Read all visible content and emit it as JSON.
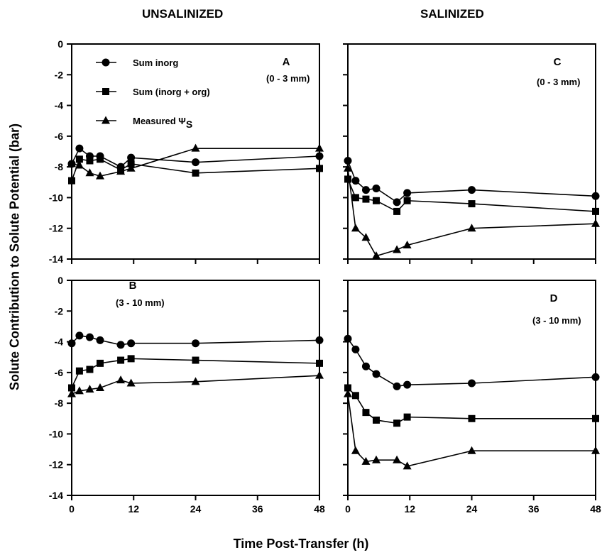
{
  "figure": {
    "header_left": "UNSALINIZED",
    "header_right": "SALINIZED",
    "xlabel": "Time Post-Transfer (h)",
    "ylabel": "Solute Contribution to Solute Potential  (bar)"
  },
  "legend": [
    {
      "label": "Sum inorg",
      "marker": "circle"
    },
    {
      "label": "Sum (inorg + org)",
      "marker": "square"
    },
    {
      "label": "Measured Ψ",
      "subscript": "S",
      "marker": "triangle"
    }
  ],
  "chart_data": [
    {
      "type": "line",
      "panel": "A",
      "annotation": "(0 - 3 mm)",
      "xlim": [
        0,
        48
      ],
      "ylim": [
        -14,
        0
      ],
      "xticks": [
        0,
        12,
        24,
        36,
        48
      ],
      "yticks": [
        0,
        -2,
        -4,
        -6,
        -8,
        -10,
        -12,
        -14
      ],
      "series": [
        {
          "name": "Sum inorg",
          "marker": "circle",
          "x": [
            0,
            1.5,
            3.5,
            5.5,
            9.5,
            11.5,
            24,
            48
          ],
          "y": [
            -7.8,
            -6.8,
            -7.3,
            -7.3,
            -8.0,
            -7.4,
            -7.7,
            -7.3
          ]
        },
        {
          "name": "Sum (inorg + org)",
          "marker": "square",
          "x": [
            0,
            1.5,
            3.5,
            5.5,
            9.5,
            11.5,
            24,
            48
          ],
          "y": [
            -8.9,
            -7.5,
            -7.6,
            -7.5,
            -8.2,
            -7.8,
            -8.4,
            -8.1
          ]
        },
        {
          "name": "Measured Ψ",
          "marker": "triangle",
          "x": [
            0,
            1.5,
            3.5,
            5.5,
            9.5,
            11.5,
            24,
            48
          ],
          "y": [
            -7.8,
            -7.9,
            -8.4,
            -8.6,
            -8.3,
            -8.1,
            -6.8,
            -6.8
          ]
        }
      ]
    },
    {
      "type": "line",
      "panel": "C",
      "annotation": "(0 - 3 mm)",
      "xlim": [
        0,
        48
      ],
      "ylim": [
        -14,
        0
      ],
      "xticks": [
        0,
        12,
        24,
        36,
        48
      ],
      "yticks": [
        0,
        -2,
        -4,
        -6,
        -8,
        -10,
        -12,
        -14
      ],
      "series": [
        {
          "name": "Sum inorg",
          "marker": "circle",
          "x": [
            0,
            1.5,
            3.5,
            5.5,
            9.5,
            11.5,
            24,
            48
          ],
          "y": [
            -7.6,
            -8.9,
            -9.5,
            -9.4,
            -10.3,
            -9.7,
            -9.5,
            -9.9
          ]
        },
        {
          "name": "Sum (inorg + org)",
          "marker": "square",
          "x": [
            0,
            1.5,
            3.5,
            5.5,
            9.5,
            11.5,
            24,
            48
          ],
          "y": [
            -8.8,
            -10.0,
            -10.1,
            -10.2,
            -10.9,
            -10.2,
            -10.4,
            -10.9
          ]
        },
        {
          "name": "Measured Ψ",
          "marker": "triangle",
          "x": [
            0,
            1.5,
            3.5,
            5.5,
            9.5,
            11.5,
            24,
            48
          ],
          "y": [
            -8.1,
            -12.0,
            -12.6,
            -13.8,
            -13.4,
            -13.1,
            -12.0,
            -11.7
          ]
        }
      ]
    },
    {
      "type": "line",
      "panel": "B",
      "annotation": "(3 - 10 mm)",
      "xlim": [
        0,
        48
      ],
      "ylim": [
        -14,
        0
      ],
      "xticks": [
        0,
        12,
        24,
        36,
        48
      ],
      "yticks": [
        0,
        -2,
        -4,
        -6,
        -8,
        -10,
        -12,
        -14
      ],
      "series": [
        {
          "name": "Sum inorg",
          "marker": "circle",
          "x": [
            0,
            1.5,
            3.5,
            5.5,
            9.5,
            11.5,
            24,
            48
          ],
          "y": [
            -4.1,
            -3.6,
            -3.7,
            -3.9,
            -4.2,
            -4.1,
            -4.1,
            -3.9
          ]
        },
        {
          "name": "Sum (inorg + org)",
          "marker": "square",
          "x": [
            0,
            1.5,
            3.5,
            5.5,
            9.5,
            11.5,
            24,
            48
          ],
          "y": [
            -7.0,
            -5.9,
            -5.8,
            -5.4,
            -5.2,
            -5.1,
            -5.2,
            -5.4
          ]
        },
        {
          "name": "Measured Ψ",
          "marker": "triangle",
          "x": [
            0,
            1.5,
            3.5,
            5.5,
            9.5,
            11.5,
            24,
            48
          ],
          "y": [
            -7.4,
            -7.2,
            -7.1,
            -7.0,
            -6.5,
            -6.7,
            -6.6,
            -6.2
          ]
        }
      ]
    },
    {
      "type": "line",
      "panel": "D",
      "annotation": "(3 - 10 mm)",
      "xlim": [
        0,
        48
      ],
      "ylim": [
        -14,
        0
      ],
      "xticks": [
        0,
        12,
        24,
        36,
        48
      ],
      "yticks": [
        0,
        -2,
        -4,
        -6,
        -8,
        -10,
        -12,
        -14
      ],
      "series": [
        {
          "name": "Sum inorg",
          "marker": "circle",
          "x": [
            0,
            1.5,
            3.5,
            5.5,
            9.5,
            11.5,
            24,
            48
          ],
          "y": [
            -3.8,
            -4.5,
            -5.6,
            -6.1,
            -6.9,
            -6.8,
            -6.7,
            -6.3
          ]
        },
        {
          "name": "Sum (inorg + org)",
          "marker": "square",
          "x": [
            0,
            1.5,
            3.5,
            5.5,
            9.5,
            11.5,
            24,
            48
          ],
          "y": [
            -7.0,
            -7.5,
            -8.6,
            -9.1,
            -9.3,
            -8.9,
            -9.0,
            -9.0
          ]
        },
        {
          "name": "Measured Ψ",
          "marker": "triangle",
          "x": [
            0,
            1.5,
            3.5,
            5.5,
            9.5,
            11.5,
            24,
            48
          ],
          "y": [
            -7.4,
            -11.1,
            -11.8,
            -11.7,
            -11.7,
            -12.1,
            -11.1,
            -11.1
          ]
        }
      ]
    }
  ]
}
